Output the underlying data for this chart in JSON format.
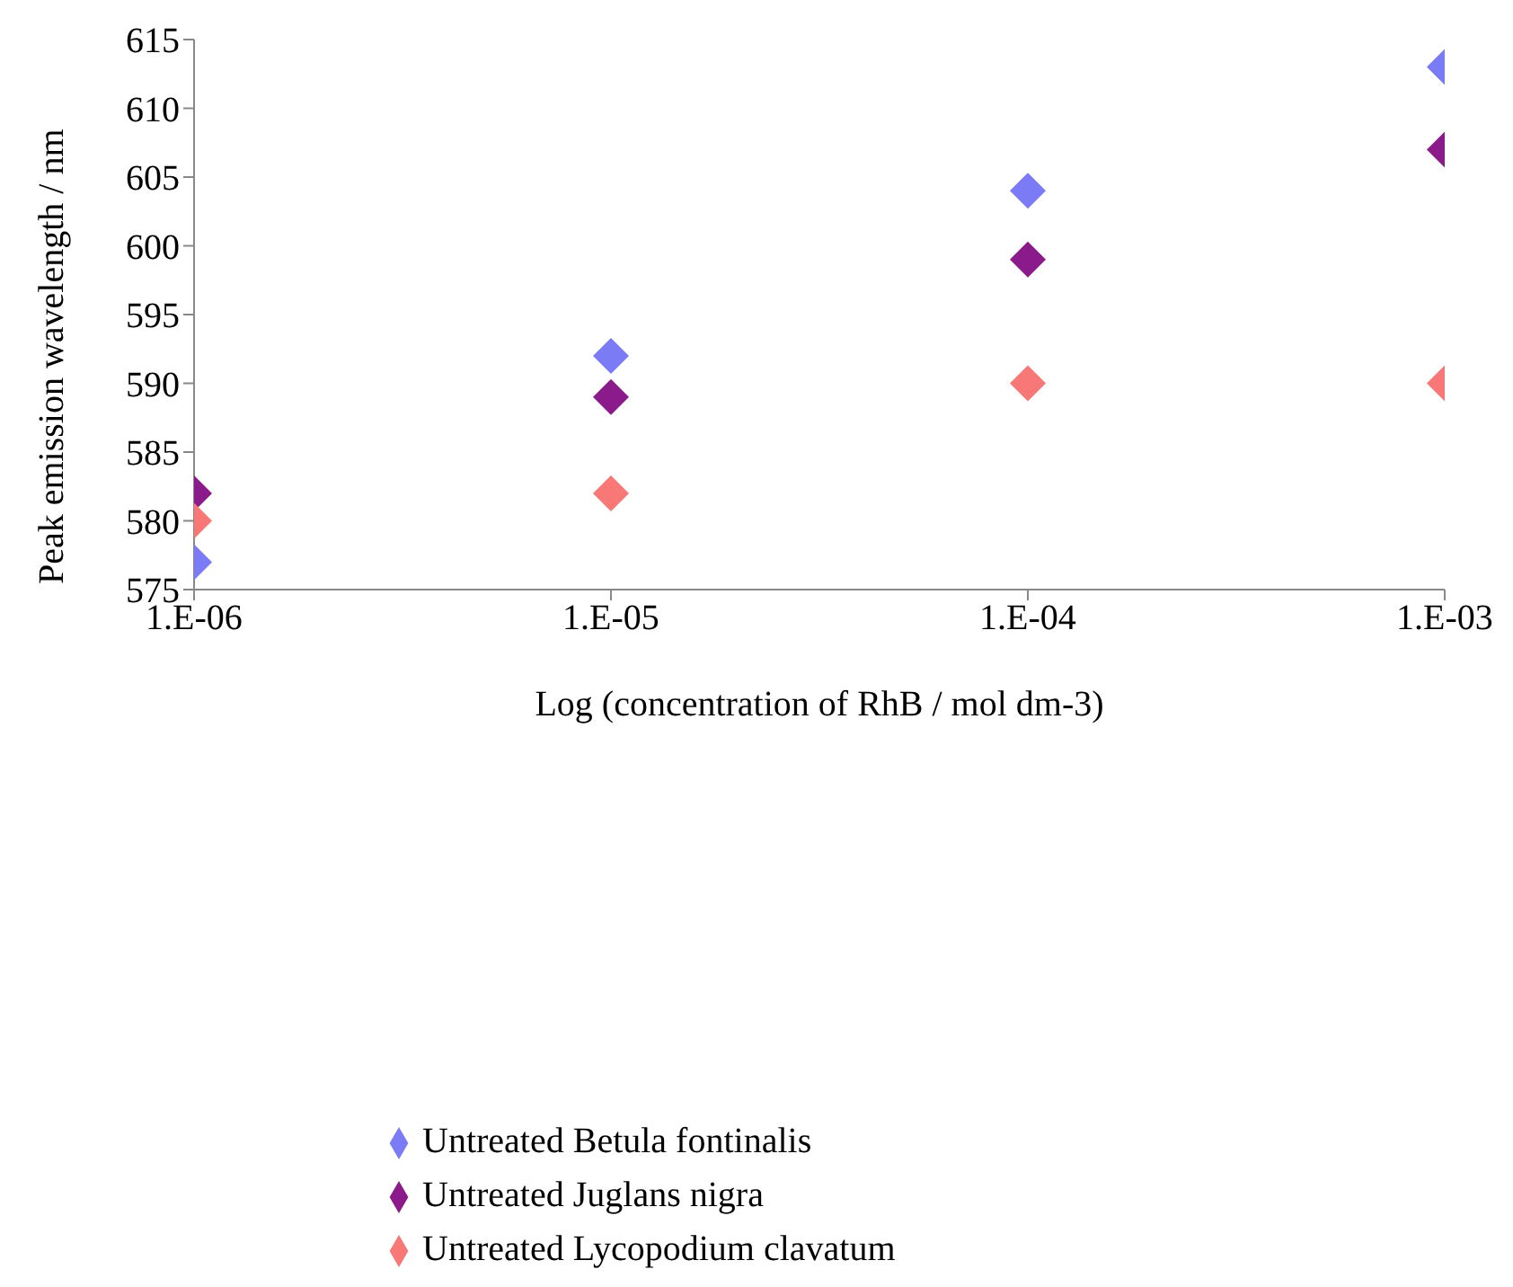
{
  "chart_data": {
    "type": "scatter",
    "xlabel": "Log (concentration of RhB / mol dm-3)",
    "ylabel": "Peak emission wavelength / nm",
    "categories": [
      "1.E-06",
      "1.E-05",
      "1.E-04",
      "1.E-03"
    ],
    "ylim": [
      575,
      615
    ],
    "yticks": [
      575,
      580,
      585,
      590,
      595,
      600,
      605,
      610,
      615
    ],
    "legend": "bottom",
    "marker": "diamond",
    "series": [
      {
        "name": "Untreated Betula fontinalis",
        "color": "#7b7bf5",
        "values": [
          577,
          592,
          604,
          613
        ]
      },
      {
        "name": "Untreated Juglans nigra",
        "color": "#8b1a8b",
        "values": [
          582,
          589,
          599,
          607
        ]
      },
      {
        "name": "Untreated Lycopodium clavatum",
        "color": "#f87878",
        "values": [
          580,
          582,
          590,
          590
        ]
      }
    ]
  }
}
